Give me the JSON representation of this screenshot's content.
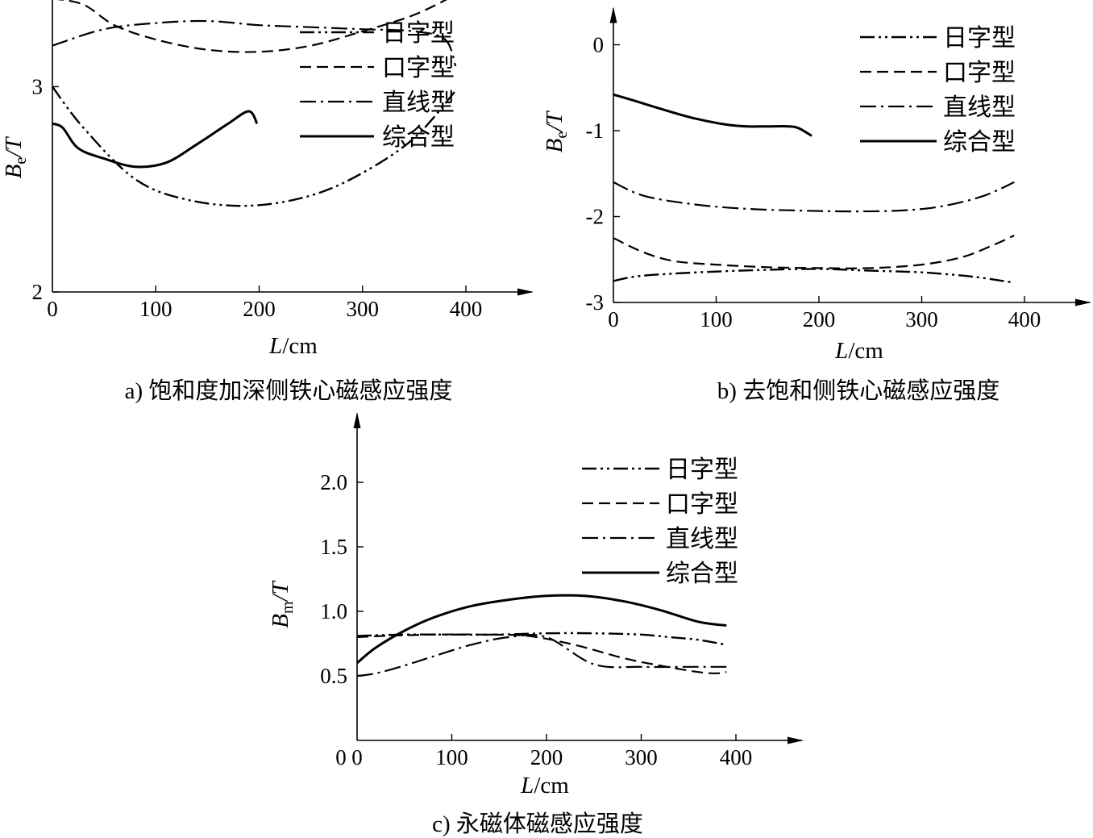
{
  "chart_data": [
    {
      "id": "a",
      "type": "line",
      "caption": "a) 饱和度加深侧铁心磁感应强度",
      "xlabel_var": "L",
      "xlabel_unit": "/cm",
      "ylabel_var": "B",
      "ylabel_sub": "e",
      "ylabel_unit": "/T",
      "xlim": [
        0,
        400
      ],
      "ylim": [
        2,
        5
      ],
      "xticks": [
        0,
        100,
        200,
        300,
        400
      ],
      "yticks": [
        2,
        3,
        4,
        5
      ],
      "legend_position": "top-right",
      "series": [
        {
          "name": "日字型",
          "style": "dash-dot-dot",
          "x": [
            0,
            30,
            80,
            130,
            190,
            250,
            300,
            350,
            390
          ],
          "y": [
            3.0,
            2.8,
            2.55,
            2.45,
            2.42,
            2.47,
            2.58,
            2.75,
            2.98
          ]
        },
        {
          "name": "口字型",
          "style": "dashed",
          "x": [
            0,
            30,
            60,
            100,
            150,
            200,
            250,
            300,
            350,
            390,
            395
          ],
          "y": [
            3.43,
            3.4,
            3.3,
            3.23,
            3.18,
            3.17,
            3.2,
            3.27,
            3.35,
            3.45,
            3.48
          ]
        },
        {
          "name": "直线型",
          "style": "dash-dot",
          "x": [
            0,
            50,
            100,
            150,
            200,
            250,
            300,
            350,
            380,
            390
          ],
          "y": [
            3.2,
            3.28,
            3.31,
            3.32,
            3.3,
            3.29,
            3.28,
            3.27,
            3.23,
            3.1
          ]
        },
        {
          "name": "综合型",
          "style": "solid",
          "x": [
            0,
            10,
            25,
            50,
            80,
            110,
            140,
            170,
            190,
            198
          ],
          "y": [
            2.82,
            2.8,
            2.7,
            2.65,
            2.61,
            2.63,
            2.72,
            2.82,
            2.88,
            2.82
          ]
        }
      ]
    },
    {
      "id": "b",
      "type": "line",
      "caption": "b) 去饱和侧铁心磁感应强度",
      "xlabel_var": "L",
      "xlabel_unit": "/cm",
      "ylabel_var": "B",
      "ylabel_sub": "e",
      "ylabel_unit": "/T",
      "xlim": [
        0,
        400
      ],
      "ylim": [
        -3,
        0
      ],
      "xticks": [
        0,
        100,
        200,
        300,
        400
      ],
      "yticks": [
        0,
        -1,
        -2,
        -3
      ],
      "legend_position": "top-right",
      "series": [
        {
          "name": "日字型",
          "style": "dash-dot-dot",
          "x": [
            0,
            20,
            50,
            100,
            150,
            200,
            250,
            300,
            350,
            390
          ],
          "y": [
            -2.75,
            -2.7,
            -2.67,
            -2.64,
            -2.62,
            -2.61,
            -2.63,
            -2.65,
            -2.7,
            -2.77
          ]
        },
        {
          "name": "口字型",
          "style": "dashed",
          "x": [
            0,
            30,
            60,
            100,
            150,
            200,
            250,
            300,
            340,
            370,
            390
          ],
          "y": [
            -2.25,
            -2.42,
            -2.52,
            -2.56,
            -2.59,
            -2.6,
            -2.6,
            -2.56,
            -2.47,
            -2.33,
            -2.22
          ]
        },
        {
          "name": "直线型",
          "style": "dash-dot",
          "x": [
            0,
            30,
            80,
            130,
            180,
            230,
            280,
            320,
            360,
            390
          ],
          "y": [
            -1.6,
            -1.76,
            -1.86,
            -1.91,
            -1.93,
            -1.94,
            -1.93,
            -1.88,
            -1.76,
            -1.6
          ]
        },
        {
          "name": "综合型",
          "style": "solid",
          "x": [
            0,
            20,
            50,
            80,
            110,
            130,
            150,
            170,
            180,
            193
          ],
          "y": [
            -0.58,
            -0.65,
            -0.76,
            -0.86,
            -0.93,
            -0.95,
            -0.95,
            -0.95,
            -0.97,
            -1.06
          ]
        }
      ]
    },
    {
      "id": "c",
      "type": "line",
      "caption": "c) 永磁体磁感应强度",
      "xlabel_var": "L",
      "xlabel_unit": "/cm",
      "ylabel_var": "B",
      "ylabel_sub": "m",
      "ylabel_unit": "/T",
      "xlim": [
        0,
        400
      ],
      "ylim": [
        0,
        2.0
      ],
      "xticks": [
        0,
        100,
        200,
        300,
        400
      ],
      "yticks": [
        0.5,
        1.0,
        1.5,
        2.0
      ],
      "legend_position": "top-right",
      "series": [
        {
          "name": "日字型",
          "style": "dash-dot-dot",
          "x": [
            0,
            50,
            100,
            150,
            200,
            250,
            300,
            330,
            360,
            390
          ],
          "y": [
            0.81,
            0.82,
            0.82,
            0.82,
            0.83,
            0.83,
            0.82,
            0.8,
            0.78,
            0.74
          ]
        },
        {
          "name": "口字型",
          "style": "dashed",
          "x": [
            0,
            30,
            80,
            130,
            180,
            230,
            280,
            320,
            360,
            380,
            390
          ],
          "y": [
            0.8,
            0.81,
            0.82,
            0.82,
            0.81,
            0.74,
            0.64,
            0.58,
            0.53,
            0.52,
            0.53
          ]
        },
        {
          "name": "直线型",
          "style": "dash-dot",
          "x": [
            0,
            20,
            50,
            80,
            120,
            160,
            200,
            250,
            300,
            350,
            390
          ],
          "y": [
            0.5,
            0.52,
            0.58,
            0.65,
            0.74,
            0.8,
            0.8,
            0.59,
            0.57,
            0.57,
            0.57
          ]
        },
        {
          "name": "综合型",
          "style": "solid",
          "x": [
            0,
            20,
            50,
            80,
            120,
            160,
            200,
            240,
            280,
            320,
            360,
            390
          ],
          "y": [
            0.6,
            0.72,
            0.85,
            0.95,
            1.04,
            1.09,
            1.12,
            1.12,
            1.08,
            1.01,
            0.92,
            0.89
          ]
        }
      ]
    }
  ]
}
